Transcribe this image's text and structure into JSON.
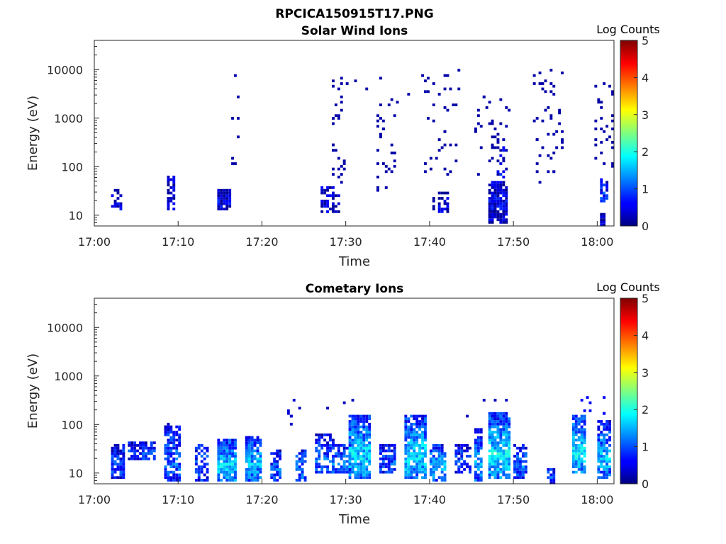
{
  "figure_title": "RPCICA150915T17.PNG",
  "chart_data": [
    {
      "type": "heatmap",
      "title": "Solar Wind Ions",
      "xlabel": "Time",
      "ylabel": "Energy (eV)",
      "x_range_minutes": [
        0,
        62
      ],
      "x_ticks": [
        {
          "minute": 0,
          "label": "17:00"
        },
        {
          "minute": 10,
          "label": "17:10"
        },
        {
          "minute": 20,
          "label": "17:20"
        },
        {
          "minute": 30,
          "label": "17:30"
        },
        {
          "minute": 40,
          "label": "17:40"
        },
        {
          "minute": 50,
          "label": "17:50"
        },
        {
          "minute": 60,
          "label": "18:00"
        }
      ],
      "y_scale": "log",
      "y_range": [
        6,
        40000
      ],
      "y_ticks": [
        {
          "value": 10,
          "label": "10"
        },
        {
          "value": 100,
          "label": "100"
        },
        {
          "value": 1000,
          "label": "1000"
        },
        {
          "value": 10000,
          "label": "10000"
        }
      ],
      "colorbar": {
        "label": "Log Counts",
        "range": [
          0,
          5
        ],
        "ticks": [
          "0",
          "1",
          "2",
          "3",
          "4",
          "5"
        ]
      },
      "clusters": [
        {
          "t0": 2.0,
          "t1": 3.2,
          "e0": 13,
          "e1": 32,
          "level": 0.2,
          "density": 0.55
        },
        {
          "t0": 8.7,
          "t1": 9.7,
          "e0": 13,
          "e1": 60,
          "level": 0.2,
          "density": 0.6
        },
        {
          "t0": 14.8,
          "t1": 16.2,
          "e0": 13,
          "e1": 32,
          "level": 0.25,
          "density": 0.95
        },
        {
          "t0": 27.0,
          "t1": 29.5,
          "e0": 12,
          "e1": 40,
          "level": 0.2,
          "density": 0.5
        },
        {
          "t0": 40.5,
          "t1": 42.5,
          "e0": 12,
          "e1": 32,
          "level": 0.2,
          "density": 0.5
        },
        {
          "t0": 47.0,
          "t1": 49.2,
          "e0": 7,
          "e1": 50,
          "level": 0.3,
          "density": 0.85
        },
        {
          "t0": 48.2,
          "t1": 49.0,
          "e0": 30,
          "e1": 300,
          "level": 0.25,
          "density": 0.4
        },
        {
          "t0": 60.5,
          "t1": 61.3,
          "e0": 20,
          "e1": 60,
          "level": 0.6,
          "density": 0.7
        },
        {
          "t0": 60.5,
          "t1": 61.0,
          "e0": 6,
          "e1": 10,
          "level": 0.2,
          "density": 0.7
        }
      ],
      "scatter": [
        {
          "t0": 28.5,
          "t1": 30.0,
          "e0": 50,
          "e1": 9000,
          "level": 0.2,
          "n": 30
        },
        {
          "t0": 33.5,
          "t1": 36.0,
          "e0": 30,
          "e1": 3000,
          "level": 0.2,
          "n": 30
        },
        {
          "t0": 39.5,
          "t1": 43.5,
          "e0": 60,
          "e1": 12000,
          "level": 0.2,
          "n": 35
        },
        {
          "t0": 45.5,
          "t1": 49.5,
          "e0": 60,
          "e1": 3000,
          "level": 0.2,
          "n": 35
        },
        {
          "t0": 52.5,
          "t1": 56.0,
          "e0": 50,
          "e1": 12000,
          "level": 0.2,
          "n": 45
        },
        {
          "t0": 59.5,
          "t1": 62.0,
          "e0": 80,
          "e1": 8000,
          "level": 0.2,
          "n": 30
        },
        {
          "t0": 16.5,
          "t1": 17.2,
          "e0": 80,
          "e1": 9000,
          "level": 0.2,
          "n": 8
        },
        {
          "t0": 30.0,
          "t1": 40.0,
          "e0": 2000,
          "e1": 10000,
          "level": 0.2,
          "n": 8
        }
      ]
    },
    {
      "type": "heatmap",
      "title": "Cometary Ions",
      "xlabel": "Time",
      "ylabel": "Energy (eV)",
      "x_range_minutes": [
        0,
        62
      ],
      "x_ticks": [
        {
          "minute": 0,
          "label": "17:00"
        },
        {
          "minute": 10,
          "label": "17:10"
        },
        {
          "minute": 20,
          "label": "17:20"
        },
        {
          "minute": 30,
          "label": "17:30"
        },
        {
          "minute": 40,
          "label": "17:40"
        },
        {
          "minute": 50,
          "label": "17:50"
        },
        {
          "minute": 60,
          "label": "18:00"
        }
      ],
      "y_scale": "log",
      "y_range": [
        6,
        40000
      ],
      "y_ticks": [
        {
          "value": 10,
          "label": "10"
        },
        {
          "value": 100,
          "label": "100"
        },
        {
          "value": 1000,
          "label": "1000"
        },
        {
          "value": 10000,
          "label": "10000"
        }
      ],
      "colorbar": {
        "label": "Log Counts",
        "range": [
          0,
          5
        ],
        "ticks": [
          "0",
          "1",
          "2",
          "3",
          "4",
          "5"
        ]
      },
      "clusters": [
        {
          "t0": 2.0,
          "t1": 3.5,
          "e0": 8,
          "e1": 40,
          "level": 0.8,
          "density": 0.85
        },
        {
          "t0": 4.0,
          "t1": 7.5,
          "e0": 20,
          "e1": 45,
          "level": 0.7,
          "density": 0.75
        },
        {
          "t0": 8.5,
          "t1": 10.5,
          "e0": 7,
          "e1": 90,
          "level": 0.9,
          "density": 0.75
        },
        {
          "t0": 12.0,
          "t1": 13.5,
          "e0": 7,
          "e1": 40,
          "level": 0.8,
          "density": 0.6
        },
        {
          "t0": 14.8,
          "t1": 17.0,
          "e0": 7,
          "e1": 50,
          "level": 1.5,
          "density": 0.9
        },
        {
          "t0": 18.0,
          "t1": 20.0,
          "e0": 7,
          "e1": 60,
          "level": 1.3,
          "density": 0.8
        },
        {
          "t0": 21.0,
          "t1": 22.5,
          "e0": 7,
          "e1": 30,
          "level": 0.8,
          "density": 0.6
        },
        {
          "t0": 24.0,
          "t1": 25.5,
          "e0": 7,
          "e1": 30,
          "level": 1.0,
          "density": 0.7
        },
        {
          "t0": 26.5,
          "t1": 28.5,
          "e0": 10,
          "e1": 60,
          "level": 0.8,
          "density": 0.6
        },
        {
          "t0": 28.5,
          "t1": 30.5,
          "e0": 10,
          "e1": 40,
          "level": 1.0,
          "density": 0.75
        },
        {
          "t0": 30.5,
          "t1": 33.0,
          "e0": 8,
          "e1": 150,
          "level": 1.5,
          "density": 0.9
        },
        {
          "t0": 34.0,
          "t1": 35.8,
          "e0": 10,
          "e1": 40,
          "level": 0.8,
          "density": 0.8
        },
        {
          "t0": 37.0,
          "t1": 39.5,
          "e0": 8,
          "e1": 150,
          "level": 1.5,
          "density": 0.85
        },
        {
          "t0": 40.0,
          "t1": 42.0,
          "e0": 7,
          "e1": 40,
          "level": 1.3,
          "density": 0.8
        },
        {
          "t0": 43.0,
          "t1": 45.0,
          "e0": 10,
          "e1": 40,
          "level": 0.7,
          "density": 0.6
        },
        {
          "t0": 45.5,
          "t1": 46.5,
          "e0": 7,
          "e1": 80,
          "level": 1.2,
          "density": 0.7
        },
        {
          "t0": 47.0,
          "t1": 49.5,
          "e0": 8,
          "e1": 180,
          "level": 1.6,
          "density": 0.9
        },
        {
          "t0": 50.0,
          "t1": 51.5,
          "e0": 8,
          "e1": 40,
          "level": 1.0,
          "density": 0.7
        },
        {
          "t0": 54.0,
          "t1": 54.7,
          "e0": 6,
          "e1": 12,
          "level": 1.0,
          "density": 0.7
        },
        {
          "t0": 57.0,
          "t1": 58.5,
          "e0": 10,
          "e1": 150,
          "level": 1.6,
          "density": 0.85
        },
        {
          "t0": 60.0,
          "t1": 61.5,
          "e0": 8,
          "e1": 120,
          "level": 1.3,
          "density": 0.8
        }
      ],
      "scatter": [
        {
          "t0": 23.0,
          "t1": 23.8,
          "e0": 80,
          "e1": 350,
          "level": 0.4,
          "n": 6
        },
        {
          "t0": 8.5,
          "t1": 9.3,
          "e0": 80,
          "e1": 120,
          "level": 0.3,
          "n": 3
        },
        {
          "t0": 19.0,
          "t1": 31.0,
          "e0": 200,
          "e1": 500,
          "level": 0.3,
          "n": 4
        },
        {
          "t0": 44.5,
          "t1": 51.0,
          "e0": 150,
          "e1": 500,
          "level": 0.3,
          "n": 4
        },
        {
          "t0": 57.5,
          "t1": 61.5,
          "e0": 150,
          "e1": 400,
          "level": 0.6,
          "n": 8
        }
      ]
    }
  ]
}
